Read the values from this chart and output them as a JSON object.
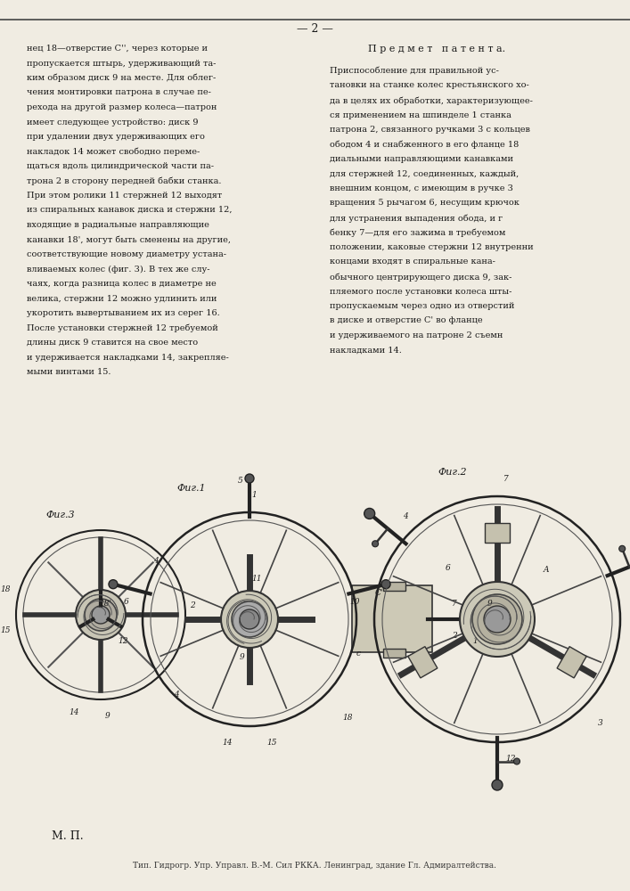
{
  "background_color": "#f5f2ea",
  "page_color": "#f0ece2",
  "text_color": "#1a1a1a",
  "page_number": "— 2 —",
  "left_column_text": [
    "нец 18—отверстие С'', через которые и",
    "пропускается штырь, удерживающий та-",
    "ким образом диск 9 на месте. Для облег-",
    "чения монтировки патрона в случае пе-",
    "рехода на другой размер колеса—патрон",
    "имеет следующее устройство: диск 9",
    "при удалении двух удерживающих его",
    "накладок 14 может свободно переме-",
    "щаться вдоль цилиндрической части па-",
    "трона 2 в сторону передней бабки станка.",
    "При этом ролики 11 стержней 12 выходят",
    "из спиральных канавок диска и стержни 12,",
    "входящие в радиальные направляющие",
    "канавки 18', могут быть сменены на другие,",
    "соответствующие новому диаметру устана-",
    "вливаемых колес (фиг. 3). В тех же слу-",
    "чаях, когда разница колес в диаметре не",
    "велика, стержни 12 можно удлинить или",
    "укоротить вывертыванием их из серег 16.",
    "После установки стержней 12 требуемой",
    "длины диск 9 ставится на свое место",
    "и удерживается накладками 14, закрепляе-",
    "мыми винтами 15."
  ],
  "right_column_header": "П р е д м е т   п а т е н т а.",
  "right_column_text": [
    "Приспособление для правильной ус-",
    "тановки на станке колес крестьянского хо-",
    "да в целях их обработки, характеризующее-",
    "ся применением на шпинделе 1 станка",
    "патрона 2, связанного ручками 3 с кольцев",
    "ободом 4 и снабженного в его фланце 18",
    "диальными направляющими канавками",
    "для стержней 12, соединенных, каждый,",
    "внешним концом, с имеющим в ручке 3",
    "вращения 5 рычагом 6, несущим крючок",
    "для устранения выпадения обода, и г",
    "бенку 7—для его зажима в требуемом",
    "положении, каковые стержни 12 внутренни",
    "концами входят в спиральные кана-",
    "обычного центрирующего диска 9, зак-",
    "пляемого после установки колеса шты-",
    "пропускаемым через одно из отверстий",
    "в диске и отверстие С' во фланце",
    "и удерживаемого на патроне 2 съемн",
    "накладками 14."
  ],
  "fig1_label": "Фиг.1",
  "fig2_label": "Фиг.2",
  "fig3_label": "Фиг.3",
  "footer_text": "М. П.",
  "publisher_text": "Тип. Гидрогр. Упр. Управл. В.-М. Сил РККА. Ленинград, здание Гл. Адмиралтейства."
}
